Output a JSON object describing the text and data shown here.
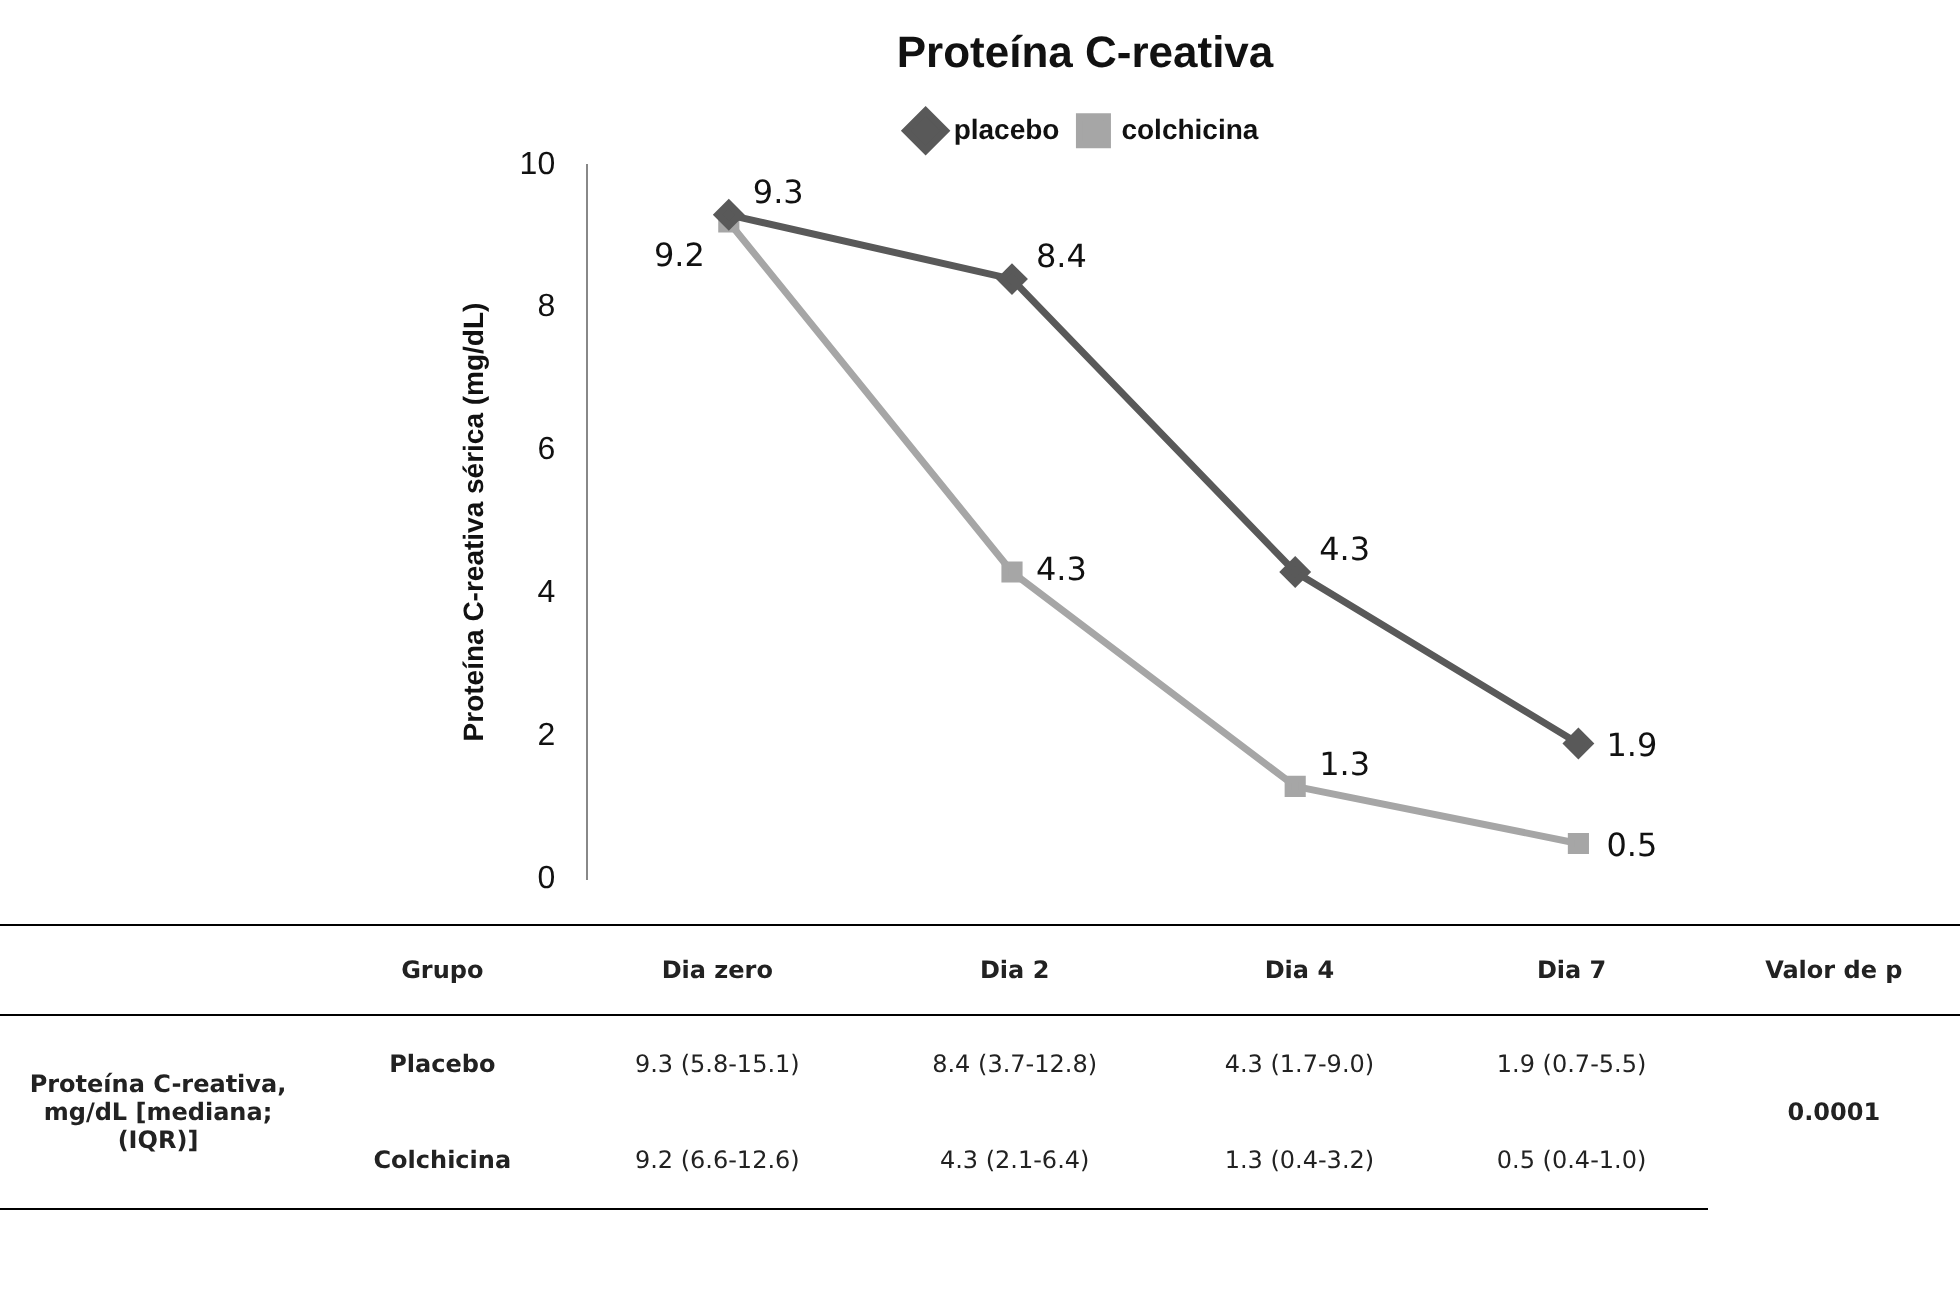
{
  "chart_data": {
    "type": "line",
    "title": "Proteína C-reativa",
    "ylabel": "Proteína C-reativa sérica (mg/dL)",
    "categories": [
      null,
      null,
      null,
      null
    ],
    "series": [
      {
        "name": "placebo",
        "color": "#595959",
        "marker": "diamond",
        "values": [
          9.3,
          8.4,
          4.3,
          1.9
        ]
      },
      {
        "name": "colchicina",
        "color": "#a6a6a6",
        "marker": "square",
        "values": [
          9.2,
          4.3,
          1.3,
          0.5
        ]
      }
    ],
    "ylim": [
      0,
      10
    ],
    "yticks": [
      0,
      2,
      4,
      6,
      8,
      10
    ],
    "grid": false,
    "legend": "top",
    "data_labels": true,
    "annotations": [
      "Grupo",
      "Dia zero",
      "Dia 2",
      "Dia 4",
      "Dia 7",
      "Valor de p",
      "Proteína C-reativa, mg/dL [mediana; (IQR)]",
      "Placebo",
      "9.3 (5.8-15.1)",
      "8.4 (3.7-12.8)",
      "4.3 (1.7-9.0)",
      "1.9 (0.7-5.5)",
      "0.0001",
      "Colchicina",
      "9.2 (6.6-12.6)",
      "4.3 (2.1-6.4)",
      "1.3 (0.4-3.2)",
      "0.5 (0.4-1.0)"
    ]
  }
}
